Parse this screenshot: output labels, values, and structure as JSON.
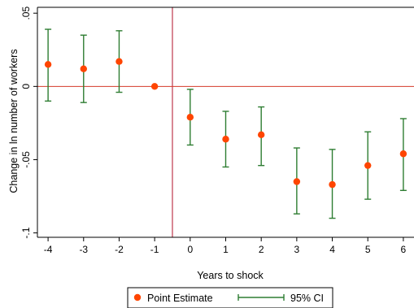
{
  "chart_data": {
    "type": "scatter",
    "xlabel": "Years to shock",
    "ylabel": "Change in ln number of workers",
    "x_ticks": [
      -4,
      -3,
      -2,
      -1,
      0,
      1,
      2,
      3,
      4,
      5,
      6
    ],
    "y_ticks": [
      {
        "value": 0.05,
        "label": ".05"
      },
      {
        "value": 0,
        "label": "0"
      },
      {
        "value": -0.05,
        "label": "-.05"
      },
      {
        "value": -0.1,
        "label": "-.1"
      }
    ],
    "xlim": [
      -4.3,
      6.3
    ],
    "ylim": [
      -0.103,
      0.054
    ],
    "grid": false,
    "reference_lines": {
      "vertical_x": -0.5,
      "horizontal_y": 0,
      "color": "#b0102a",
      "horizontal_color": "#d43a2a"
    },
    "series": [
      {
        "name": "Point Estimate",
        "kind": "point",
        "color": "#ff4500",
        "x": [
          -4,
          -3,
          -2,
          -1,
          0,
          1,
          2,
          3,
          4,
          5,
          6
        ],
        "y": [
          0.015,
          0.012,
          0.017,
          0.0,
          -0.021,
          -0.036,
          -0.033,
          -0.065,
          -0.067,
          -0.054,
          -0.046
        ]
      },
      {
        "name": "95% CI",
        "kind": "errorbar",
        "color": "#2e7d32",
        "x": [
          -4,
          -3,
          -2,
          -1,
          0,
          1,
          2,
          3,
          4,
          5,
          6
        ],
        "lower": [
          -0.01,
          -0.011,
          -0.004,
          0.0,
          -0.04,
          -0.055,
          -0.054,
          -0.087,
          -0.09,
          -0.077,
          -0.071
        ],
        "upper": [
          0.039,
          0.035,
          0.038,
          0.0,
          -0.002,
          -0.017,
          -0.014,
          -0.042,
          -0.043,
          -0.031,
          -0.022
        ]
      }
    ],
    "legend": {
      "placement": "bottom-center",
      "entries": [
        "Point Estimate",
        "95% CI"
      ]
    }
  }
}
